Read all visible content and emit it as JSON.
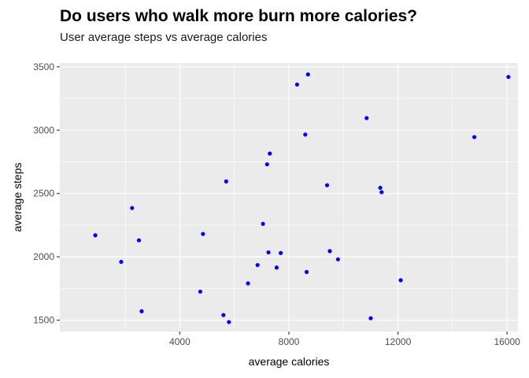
{
  "chart_data": {
    "type": "scatter",
    "title": "Do users who walk more burn more calories?",
    "subtitle": "User average steps vs average calories",
    "xlabel": "average calories",
    "ylabel": "average steps",
    "xlim": [
      -400,
      16400
    ],
    "ylim": [
      1410,
      3530
    ],
    "x_ticks": [
      4000,
      8000,
      12000,
      16000
    ],
    "y_ticks": [
      1500,
      2000,
      2500,
      3000,
      3500
    ],
    "x_ticks_labels": [
      "4000",
      "8000",
      "12000",
      "16000"
    ],
    "y_ticks_labels": [
      "1500",
      "2000",
      "2500",
      "3000",
      "3500"
    ],
    "grid": true,
    "point_color": "#0000ff",
    "panel_background": "#ebebeb",
    "points": [
      {
        "x": 900,
        "y": 2170
      },
      {
        "x": 1850,
        "y": 1960
      },
      {
        "x": 2250,
        "y": 2385
      },
      {
        "x": 2500,
        "y": 2130
      },
      {
        "x": 2600,
        "y": 1570
      },
      {
        "x": 4750,
        "y": 1725
      },
      {
        "x": 4850,
        "y": 2180
      },
      {
        "x": 5600,
        "y": 1540
      },
      {
        "x": 5700,
        "y": 2595
      },
      {
        "x": 5800,
        "y": 1485
      },
      {
        "x": 6500,
        "y": 1790
      },
      {
        "x": 6850,
        "y": 1935
      },
      {
        "x": 7050,
        "y": 2260
      },
      {
        "x": 7200,
        "y": 2730
      },
      {
        "x": 7250,
        "y": 2035
      },
      {
        "x": 7300,
        "y": 2815
      },
      {
        "x": 7550,
        "y": 1915
      },
      {
        "x": 7700,
        "y": 2030
      },
      {
        "x": 8300,
        "y": 3360
      },
      {
        "x": 8600,
        "y": 2965
      },
      {
        "x": 8650,
        "y": 1880
      },
      {
        "x": 8700,
        "y": 3440
      },
      {
        "x": 9400,
        "y": 2565
      },
      {
        "x": 9500,
        "y": 2045
      },
      {
        "x": 9800,
        "y": 1980
      },
      {
        "x": 10850,
        "y": 3095
      },
      {
        "x": 11000,
        "y": 1515
      },
      {
        "x": 11350,
        "y": 2545
      },
      {
        "x": 11400,
        "y": 2510
      },
      {
        "x": 12100,
        "y": 1815
      },
      {
        "x": 14800,
        "y": 2945
      },
      {
        "x": 16050,
        "y": 3420
      }
    ]
  }
}
